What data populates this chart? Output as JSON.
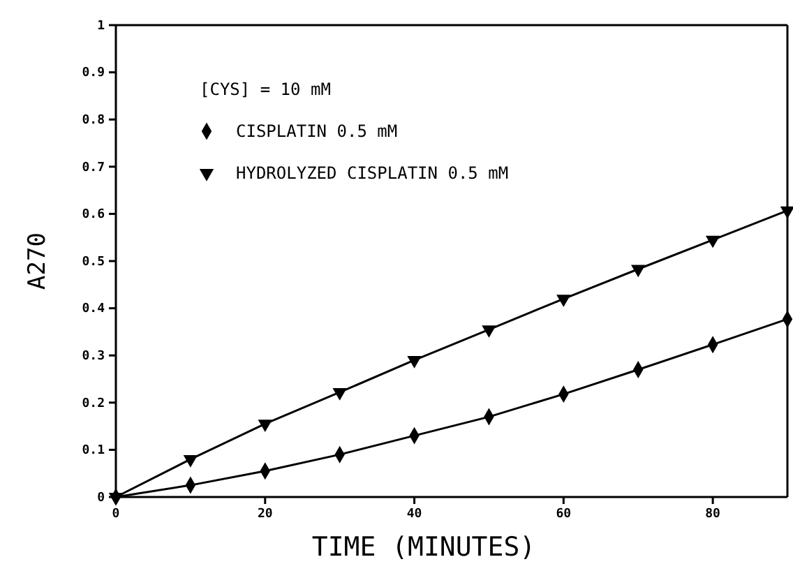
{
  "chart_data": {
    "type": "line",
    "xlabel": "TIME  (MINUTES)",
    "ylabel": "A270",
    "annotations": [
      "[CYS] = 10 mM"
    ],
    "x": [
      0,
      10,
      20,
      30,
      40,
      50,
      60,
      70,
      80,
      90
    ],
    "series": [
      {
        "name": "CISPLATIN 0.5 mM",
        "color": "#000000",
        "marker": "diamond",
        "values": [
          0,
          0.025,
          0.055,
          0.09,
          0.13,
          0.17,
          0.218,
          0.27,
          0.323,
          0.377
        ]
      },
      {
        "name": "HYDROLYZED CISPLATIN 0.5 mM",
        "color": "#000000",
        "marker": "triangle",
        "values": [
          0,
          0.08,
          0.155,
          0.222,
          0.29,
          0.355,
          0.42,
          0.483,
          0.545,
          0.607
        ]
      }
    ],
    "xlim": [
      0,
      90
    ],
    "xticks": [
      0,
      20,
      40,
      60,
      80
    ],
    "ylim": [
      0,
      1
    ],
    "yticks": [
      0,
      0.1,
      0.2,
      0.3,
      0.4,
      0.5,
      0.6,
      0.7,
      0.8,
      0.9,
      1
    ],
    "legend": "top left",
    "grid": false,
    "line_style": "solid"
  }
}
